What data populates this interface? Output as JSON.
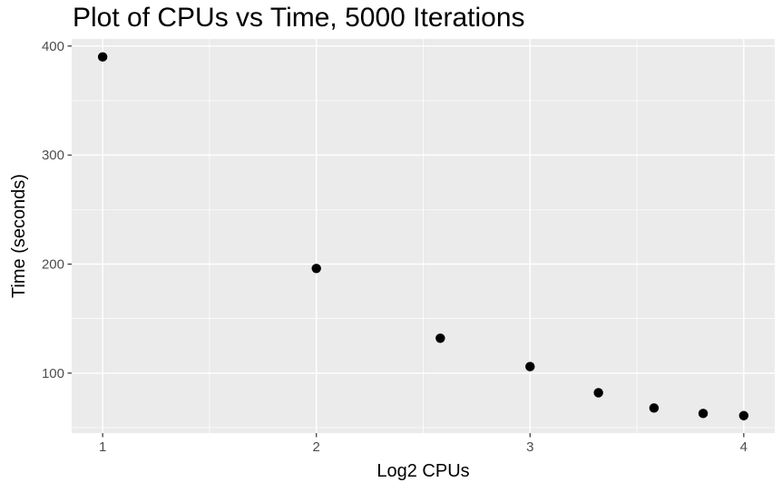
{
  "chart_data": {
    "type": "scatter",
    "title": "Plot of CPUs vs Time, 5000 Iterations",
    "xlabel": "Log2 CPUs",
    "ylabel": "Time (seconds)",
    "x": [
      1,
      2,
      2.58,
      3,
      3.32,
      3.58,
      3.81,
      4
    ],
    "y": [
      390,
      196,
      132,
      106,
      82,
      68,
      63,
      61
    ],
    "xlim": [
      0.855,
      4.145
    ],
    "ylim": [
      45,
      406.5
    ],
    "x_ticks": [
      1,
      2,
      3,
      4
    ],
    "y_ticks": [
      100,
      200,
      300,
      400
    ],
    "x_minor_gridlines": [
      1.5,
      2.5,
      3.5
    ],
    "y_minor_gridlines": [
      50,
      150,
      250,
      350
    ],
    "grid": "major+minor",
    "legend": "none",
    "point_radius_px": 5.2,
    "colors": {
      "panel_background": "#EBEBEB",
      "gridline": "#FFFFFF",
      "point": "#000000",
      "tick_label": "#4D4D4D",
      "tick_mark": "#333333",
      "title_text": "#000000"
    }
  }
}
